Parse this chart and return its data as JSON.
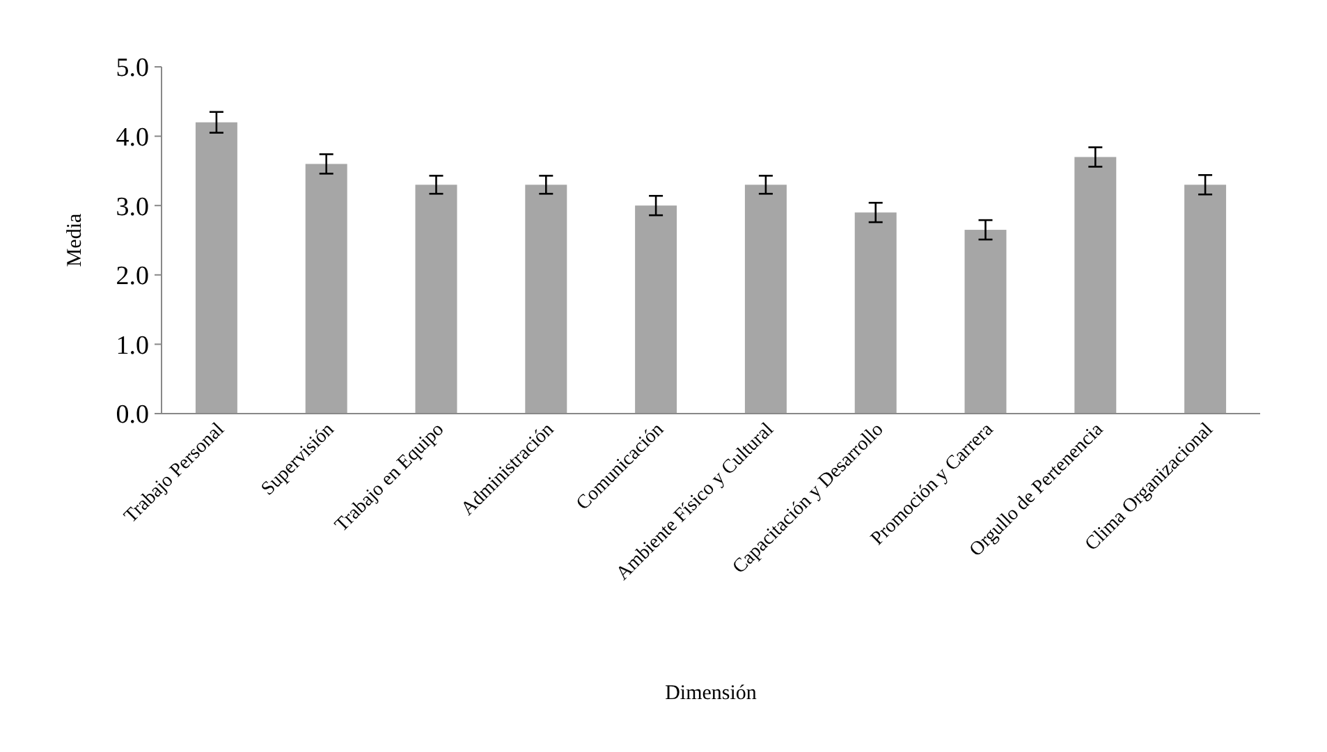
{
  "chart_data": {
    "type": "bar",
    "xlabel": "Dimensión",
    "ylabel": "Media",
    "categories": [
      "Trabajo Personal",
      "Supervisión",
      "Trabajo en Equipo",
      "Administración",
      "Comunicación",
      "Ambiente Físico y Cultural",
      "Capacitación y Desarrollo",
      "Promoción y Carrera",
      "Orgullo de Pertenencia",
      "Clima Organizacional"
    ],
    "values": [
      4.2,
      3.6,
      3.3,
      3.3,
      3.0,
      3.3,
      2.9,
      2.65,
      3.7,
      3.3
    ],
    "errors": [
      0.15,
      0.14,
      0.13,
      0.13,
      0.14,
      0.13,
      0.14,
      0.14,
      0.14,
      0.14
    ],
    "color": "#a6a6a6",
    "ylim": [
      0,
      5
    ],
    "yticks": [
      {
        "value": 0,
        "label": "0.0"
      },
      {
        "value": 1,
        "label": "1.0"
      },
      {
        "value": 2,
        "label": "2.0"
      },
      {
        "value": 3,
        "label": "3.0"
      },
      {
        "value": 4,
        "label": "4.0"
      },
      {
        "value": 5,
        "label": "5.0"
      }
    ],
    "grid": false
  }
}
